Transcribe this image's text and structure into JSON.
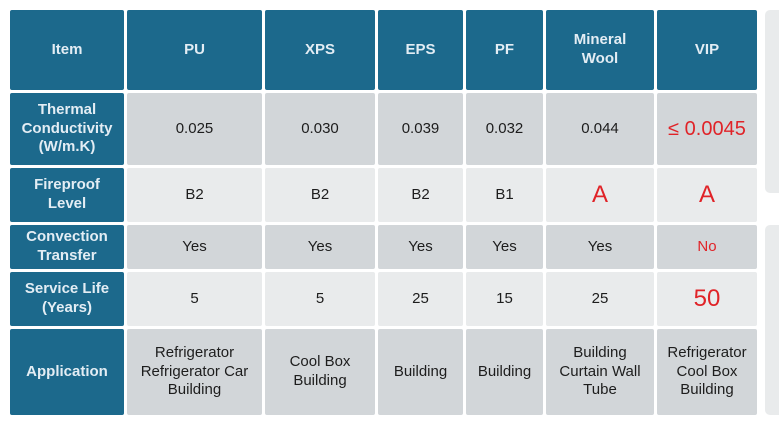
{
  "colors": {
    "header_bg": "#1c698c",
    "header_text": "#e3edf4",
    "row_band_dark": "#d2d6d9",
    "row_band_light": "#e9ebec",
    "value_text": "#1d1d1d",
    "highlight_red": "#e02328",
    "background": "#ffffff"
  },
  "table": {
    "header": {
      "item": "Item",
      "columns": [
        "PU",
        "XPS",
        "EPS",
        "PF",
        "Mineral\nWool",
        "VIP"
      ]
    },
    "rows": [
      {
        "label": "Thermal\nConductivity\n(W/m.K)",
        "values": [
          "0.025",
          "0.030",
          "0.039",
          "0.032",
          "0.044",
          "≤ 0.0045"
        ]
      },
      {
        "label": "Fireproof\nLevel",
        "values": [
          "B2",
          "B2",
          "B2",
          "B1",
          "A",
          "A"
        ]
      },
      {
        "label": "Convection\nTransfer",
        "values": [
          "Yes",
          "Yes",
          "Yes",
          "Yes",
          "Yes",
          "No"
        ]
      },
      {
        "label": "Service Life\n(Years)",
        "values": [
          "5",
          "5",
          "25",
          "15",
          "25",
          "50"
        ]
      },
      {
        "label": "Application",
        "values": [
          "Refrigerator\nRefrigerator Car\nBuilding",
          "Cool Box\nBuilding",
          "Building",
          "Building",
          "Building\nCurtain Wall\nTube",
          "Refrigerator\nCool Box\nBuilding"
        ]
      }
    ]
  }
}
